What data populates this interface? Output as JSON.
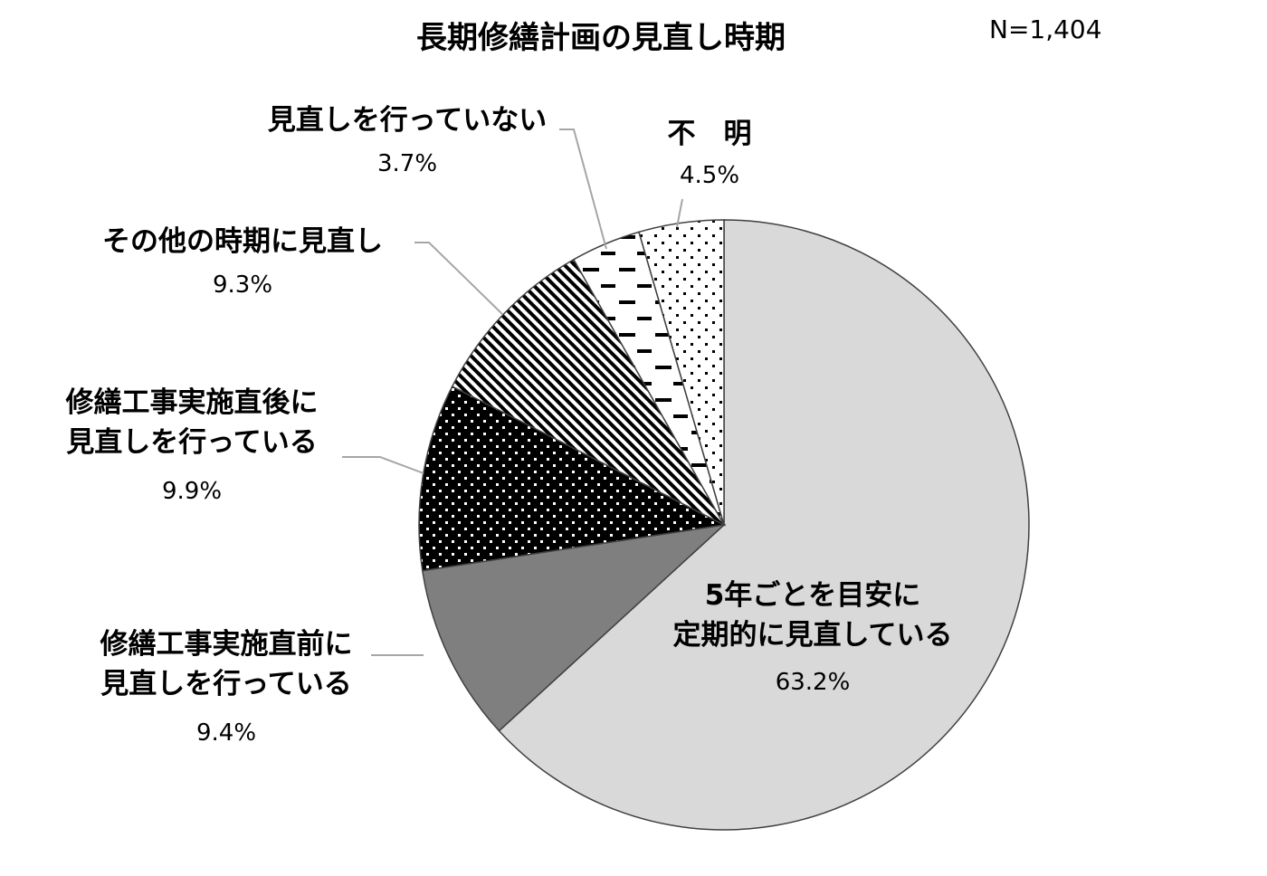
{
  "title": "長期修繕計画の見直し時期",
  "n_label": "N=1,404",
  "chart_data": {
    "type": "pie",
    "title": "長期修繕計画の見直し時期",
    "start_angle_deg": 0,
    "direction": "clockwise",
    "slices": [
      {
        "label_lines": [
          "5年ごとを目安に",
          "定期的に見直している"
        ],
        "value": 63.2,
        "value_label": "63.2%",
        "fill": "#d9d9d9",
        "pattern": "solid"
      },
      {
        "label_lines": [
          "修繕工事実施直前に",
          "見直しを行っている"
        ],
        "value": 9.4,
        "value_label": "9.4%",
        "fill": "#7f7f7f",
        "pattern": "solid"
      },
      {
        "label_lines": [
          "修繕工事実施直後に",
          "見直しを行っている"
        ],
        "value": 9.9,
        "value_label": "9.9%",
        "fill": "#000000",
        "pattern": "white-dots"
      },
      {
        "label_lines": [
          "その他の時期に見直し"
        ],
        "value": 9.3,
        "value_label": "9.3%",
        "fill": "#ffffff",
        "pattern": "diagonal-stripes"
      },
      {
        "label_lines": [
          "見直しを行っていない"
        ],
        "value": 3.7,
        "value_label": "3.7%",
        "fill": "#ffffff",
        "pattern": "dashes"
      },
      {
        "label_lines": [
          "不　明"
        ],
        "value": 4.5,
        "value_label": "4.5%",
        "fill": "#ffffff",
        "pattern": "black-dots"
      }
    ],
    "legend": "none"
  }
}
